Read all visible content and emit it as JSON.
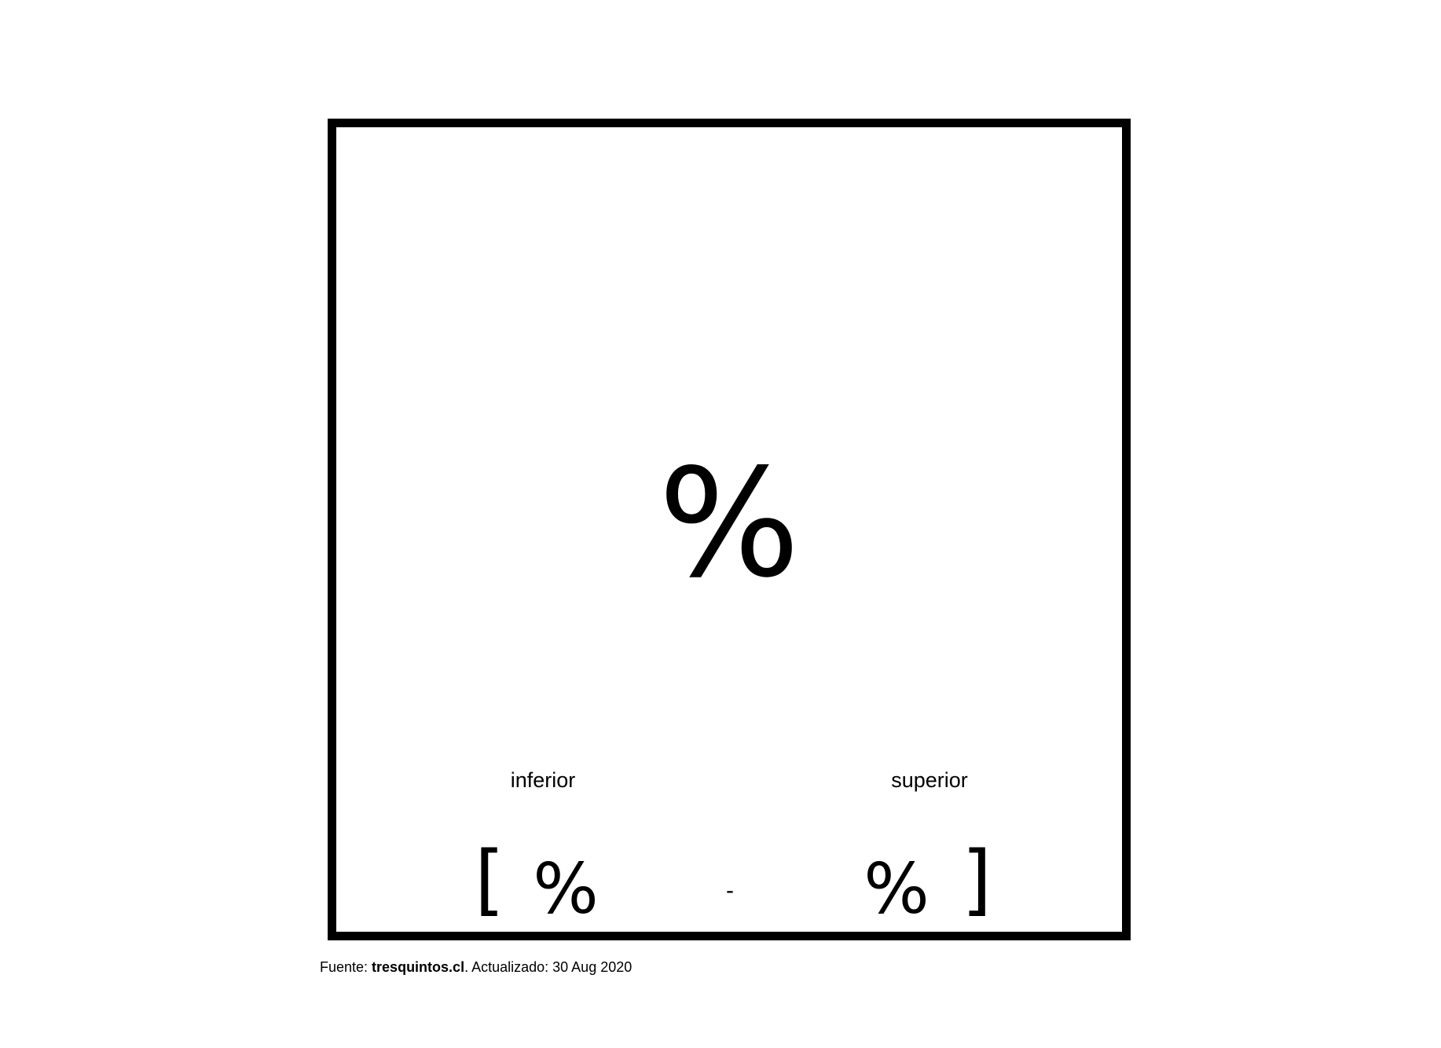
{
  "main": {
    "value": "%"
  },
  "range": {
    "lower_label": "inferior",
    "upper_label": "superior",
    "open_bracket": "[",
    "close_bracket": "]",
    "lower_value": "%",
    "upper_value": "%",
    "separator": "-"
  },
  "footer": {
    "source_prefix": "Fuente: ",
    "source_name": "tresquintos.cl",
    "updated_text": ". Actualizado: 30 Aug 2020"
  }
}
